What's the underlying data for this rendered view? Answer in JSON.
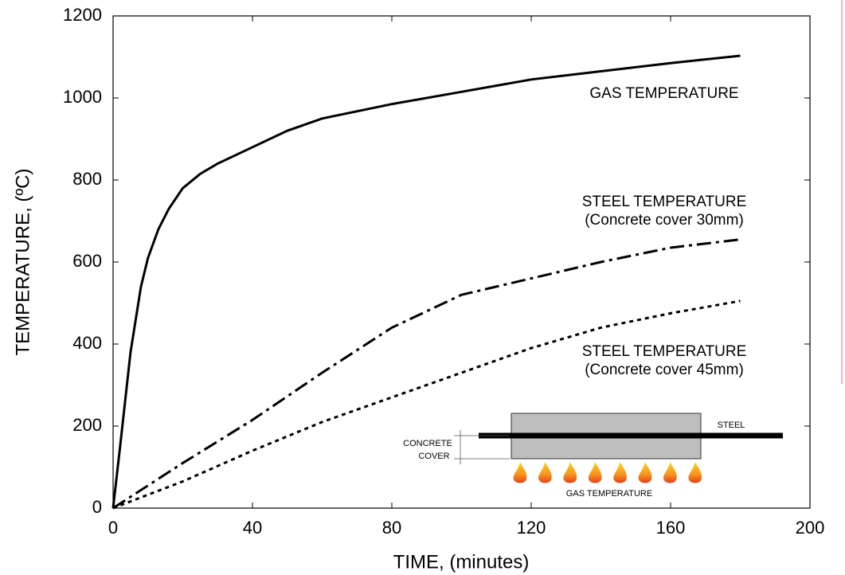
{
  "chart_data": {
    "type": "line",
    "x_label": "TIME, (minutes)",
    "y_label": "TEMPERATURE, (ºC)",
    "xlim": [
      0,
      200
    ],
    "xticks": [
      0,
      40,
      80,
      120,
      160,
      200
    ],
    "ylim": [
      0,
      1200
    ],
    "yticks": [
      0,
      200,
      400,
      600,
      800,
      1000,
      1200
    ],
    "series": [
      {
        "name": "GAS TEMPERATURE",
        "color": "#000000",
        "style": "solid",
        "x": [
          0,
          2,
          5,
          8,
          10,
          13,
          16,
          20,
          25,
          30,
          40,
          50,
          60,
          80,
          100,
          120,
          140,
          160,
          180
        ],
        "values": [
          0,
          150,
          380,
          540,
          610,
          680,
          730,
          780,
          815,
          840,
          880,
          920,
          950,
          985,
          1015,
          1045,
          1065,
          1085,
          1103
        ]
      },
      {
        "name": "STEEL TEMPERATURE",
        "note": "(Concrete cover  30mm)",
        "color": "#000000",
        "style": "dashdot",
        "x": [
          0,
          20,
          40,
          60,
          80,
          100,
          120,
          140,
          160,
          180
        ],
        "values": [
          0,
          110,
          215,
          330,
          440,
          520,
          560,
          600,
          635,
          655
        ]
      },
      {
        "name": "STEEL TEMPERATURE",
        "note": "(Concrete cover  45mm)",
        "color": "#000000",
        "style": "dotted",
        "x": [
          0,
          20,
          40,
          60,
          80,
          100,
          120,
          140,
          160,
          180
        ],
        "values": [
          0,
          65,
          140,
          210,
          270,
          330,
          390,
          440,
          475,
          505
        ]
      }
    ]
  },
  "inset": {
    "steel": "STEEL",
    "cover_line1": "CONCRETE",
    "cover_line2": "COVER",
    "gas": "GAS  TEMPERATURE"
  }
}
